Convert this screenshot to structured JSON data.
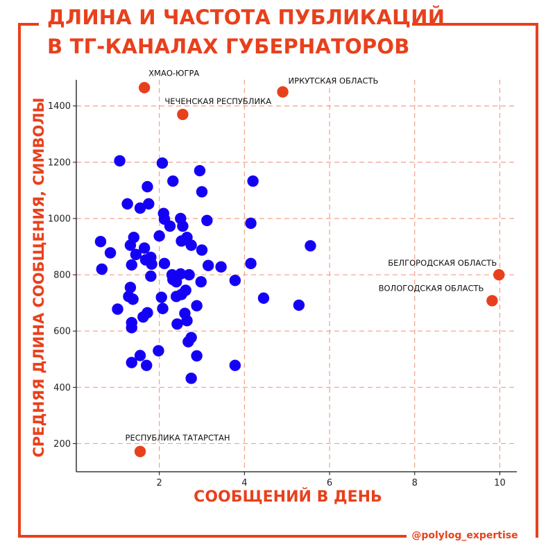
{
  "title_lines": [
    "ДЛИНА И ЧАСТОТА ПУБЛИКАЦИЙ",
    "В ТГ-КАНАЛАХ ГУБЕРНАТОРОВ"
  ],
  "source": "@polylog_expertise",
  "colors": {
    "accent": "#e8401c",
    "points": "#1400f5",
    "highlight": "#e8401c",
    "grid": "#f29f88"
  },
  "chart_data": {
    "type": "scatter",
    "title": "ДЛИНА И ЧАСТОТА ПУБЛИКАЦИЙ В ТГ-КАНАЛАХ ГУБЕРНАТОРОВ",
    "xlabel": "СООБЩЕНИЙ В ДЕНЬ",
    "ylabel": "СРЕДНЯЯ ДЛИНА СООБЩЕНИЯ, СИМВОЛЫ",
    "xlim": [
      0.05,
      10.4
    ],
    "ylim": [
      100,
      1530
    ],
    "xticks": [
      2,
      4,
      6,
      8,
      10
    ],
    "yticks": [
      200,
      400,
      600,
      800,
      1000,
      1200,
      1400
    ],
    "grid": true,
    "highlighted": [
      {
        "label": "ХМАО-ЮГРА",
        "x": 1.65,
        "y": 1465
      },
      {
        "label": "ИРКУТСКАЯ ОБЛАСТЬ",
        "x": 4.9,
        "y": 1450
      },
      {
        "label": "ЧЕЧЕНСКАЯ РЕСПУБЛИКА",
        "x": 2.55,
        "y": 1370
      },
      {
        "label": "БЕЛГОРОДСКАЯ ОБЛАСТЬ",
        "x": 9.98,
        "y": 800
      },
      {
        "label": "ВОЛОГОДСКАЯ ОБЛАСТЬ",
        "x": 9.82,
        "y": 708
      },
      {
        "label": "РЕСПУБЛИКА ТАТАРСТАН",
        "x": 1.55,
        "y": 172
      }
    ],
    "points": [
      [
        1.07,
        1205
      ],
      [
        2.07,
        1197
      ],
      [
        2.95,
        1170
      ],
      [
        2.32,
        1133
      ],
      [
        4.2,
        1133
      ],
      [
        1.72,
        1113
      ],
      [
        3.0,
        1095
      ],
      [
        1.25,
        1052
      ],
      [
        1.75,
        1052
      ],
      [
        1.55,
        1037
      ],
      [
        2.1,
        1018
      ],
      [
        2.12,
        998
      ],
      [
        2.5,
        1000
      ],
      [
        3.12,
        993
      ],
      [
        2.55,
        973
      ],
      [
        2.25,
        973
      ],
      [
        4.15,
        983
      ],
      [
        1.4,
        933
      ],
      [
        2.0,
        938
      ],
      [
        2.65,
        933
      ],
      [
        2.52,
        920
      ],
      [
        0.62,
        918
      ],
      [
        1.32,
        905
      ],
      [
        2.75,
        905
      ],
      [
        1.65,
        895
      ],
      [
        3.0,
        888
      ],
      [
        5.55,
        903
      ],
      [
        0.85,
        878
      ],
      [
        1.45,
        872
      ],
      [
        1.8,
        862
      ],
      [
        1.68,
        853
      ],
      [
        2.12,
        840
      ],
      [
        4.15,
        840
      ],
      [
        1.35,
        835
      ],
      [
        1.82,
        838
      ],
      [
        3.15,
        833
      ],
      [
        3.45,
        828
      ],
      [
        0.65,
        820
      ],
      [
        2.3,
        800
      ],
      [
        2.5,
        803
      ],
      [
        2.7,
        800
      ],
      [
        1.8,
        795
      ],
      [
        2.4,
        775
      ],
      [
        2.32,
        783
      ],
      [
        2.98,
        775
      ],
      [
        3.78,
        780
      ],
      [
        1.32,
        755
      ],
      [
        2.62,
        745
      ],
      [
        2.4,
        723
      ],
      [
        2.52,
        730
      ],
      [
        2.05,
        720
      ],
      [
        1.28,
        723
      ],
      [
        4.45,
        717
      ],
      [
        1.38,
        713
      ],
      [
        2.88,
        690
      ],
      [
        5.28,
        692
      ],
      [
        1.02,
        678
      ],
      [
        2.08,
        680
      ],
      [
        1.72,
        665
      ],
      [
        2.6,
        663
      ],
      [
        1.62,
        650
      ],
      [
        2.65,
        637
      ],
      [
        1.35,
        630
      ],
      [
        2.42,
        625
      ],
      [
        1.35,
        612
      ],
      [
        2.75,
        577
      ],
      [
        2.68,
        562
      ],
      [
        1.98,
        530
      ],
      [
        1.55,
        513
      ],
      [
        2.88,
        512
      ],
      [
        1.35,
        488
      ],
      [
        1.7,
        478
      ],
      [
        3.78,
        478
      ],
      [
        2.75,
        432
      ]
    ]
  }
}
